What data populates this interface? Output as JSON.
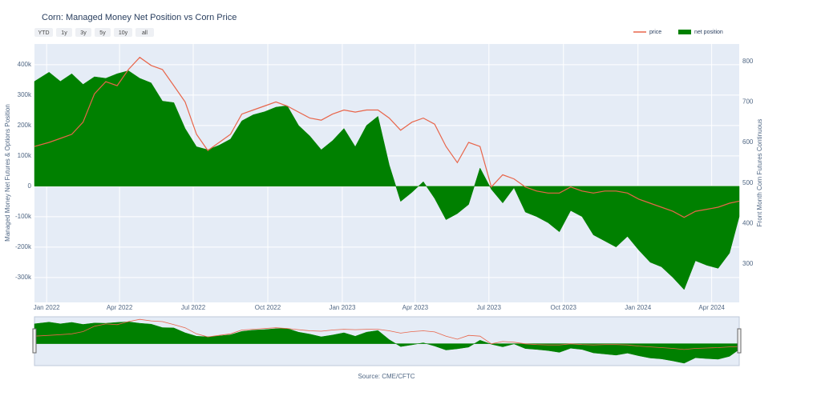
{
  "chart_data": {
    "type": "area-line",
    "title": "Corn: Managed Money Net Position vs Corn Price",
    "range_buttons": [
      "YTD",
      "1y",
      "3y",
      "5y",
      "10y",
      "all"
    ],
    "y_axis_label": "Managed Money Net Futures & Options Position",
    "y2_axis_label": "Front Month Corn Futures Continuous",
    "source": "Source: CME/CFTC",
    "xlim": [
      "2021-12-17",
      "2024-05-05"
    ],
    "xticks": [
      {
        "value": "2022-01-01",
        "label": "Jan 2022"
      },
      {
        "value": "2022-04-01",
        "label": "Apr 2022"
      },
      {
        "value": "2022-07-01",
        "label": "Jul 2022"
      },
      {
        "value": "2022-10-01",
        "label": "Oct 2022"
      },
      {
        "value": "2023-01-01",
        "label": "Jan 2023"
      },
      {
        "value": "2023-04-01",
        "label": "Apr 2023"
      },
      {
        "value": "2023-07-01",
        "label": "Jul 2023"
      },
      {
        "value": "2023-10-01",
        "label": "Oct 2023"
      },
      {
        "value": "2024-01-01",
        "label": "Jan 2024"
      },
      {
        "value": "2024-04-01",
        "label": "Apr 2024"
      }
    ],
    "ylim": [
      -382000,
      468000
    ],
    "yticks": [
      {
        "value": -300000,
        "label": "-300k"
      },
      {
        "value": -200000,
        "label": "-200k"
      },
      {
        "value": -100000,
        "label": "-100k"
      },
      0,
      {
        "value": 100000,
        "label": "100k"
      },
      {
        "value": 200000,
        "label": "200k"
      },
      {
        "value": 300000,
        "label": "300k"
      },
      {
        "value": 400000,
        "label": "400k"
      }
    ],
    "y2lim": [
      205,
      843
    ],
    "y2ticks": [
      300,
      400,
      500,
      600,
      700,
      800
    ],
    "grid": true,
    "legend": "top-right",
    "x": [
      "2021-12-17",
      "2022-01-04",
      "2022-01-18",
      "2022-02-01",
      "2022-02-15",
      "2022-03-01",
      "2022-03-15",
      "2022-03-29",
      "2022-04-12",
      "2022-04-26",
      "2022-05-10",
      "2022-05-24",
      "2022-06-07",
      "2022-06-21",
      "2022-07-05",
      "2022-07-19",
      "2022-08-02",
      "2022-08-16",
      "2022-08-30",
      "2022-09-13",
      "2022-09-27",
      "2022-10-11",
      "2022-10-25",
      "2022-11-08",
      "2022-11-22",
      "2022-12-06",
      "2022-12-20",
      "2023-01-03",
      "2023-01-17",
      "2023-01-31",
      "2023-02-14",
      "2023-02-28",
      "2023-03-14",
      "2023-03-28",
      "2023-04-11",
      "2023-04-25",
      "2023-05-09",
      "2023-05-23",
      "2023-06-06",
      "2023-06-20",
      "2023-07-04",
      "2023-07-18",
      "2023-08-01",
      "2023-08-15",
      "2023-08-29",
      "2023-09-12",
      "2023-09-26",
      "2023-10-10",
      "2023-10-24",
      "2023-11-07",
      "2023-11-21",
      "2023-12-05",
      "2023-12-19",
      "2024-01-02",
      "2024-01-16",
      "2024-01-30",
      "2024-02-13",
      "2024-02-27",
      "2024-03-12",
      "2024-03-26",
      "2024-04-09",
      "2024-04-23",
      "2024-05-05"
    ],
    "series": [
      {
        "name": "net position",
        "color": "#008000",
        "axis": "y",
        "values": [
          345000,
          375000,
          345000,
          370000,
          335000,
          360000,
          355000,
          370000,
          380000,
          355000,
          340000,
          280000,
          275000,
          190000,
          130000,
          120000,
          135000,
          155000,
          215000,
          235000,
          245000,
          260000,
          265000,
          200000,
          165000,
          120000,
          150000,
          190000,
          130000,
          200000,
          230000,
          70000,
          -50000,
          -20000,
          15000,
          -40000,
          -110000,
          -90000,
          -60000,
          60000,
          -10000,
          -55000,
          -5000,
          -85000,
          -100000,
          -120000,
          -150000,
          -80000,
          -100000,
          -160000,
          -180000,
          -200000,
          -165000,
          -210000,
          -250000,
          -265000,
          -300000,
          -340000,
          -245000,
          -260000,
          -270000,
          -220000,
          -100000
        ]
      },
      {
        "name": "price",
        "color": "#e8654a",
        "axis": "y2",
        "values": [
          590,
          600,
          610,
          620,
          650,
          720,
          750,
          740,
          780,
          810,
          790,
          780,
          740,
          700,
          620,
          580,
          600,
          620,
          670,
          680,
          690,
          700,
          690,
          675,
          660,
          655,
          670,
          680,
          675,
          680,
          680,
          660,
          630,
          650,
          660,
          645,
          590,
          550,
          600,
          590,
          490,
          520,
          510,
          490,
          480,
          475,
          475,
          490,
          480,
          475,
          480,
          480,
          475,
          460,
          450,
          440,
          430,
          415,
          430,
          435,
          440,
          450,
          455
        ]
      }
    ]
  }
}
